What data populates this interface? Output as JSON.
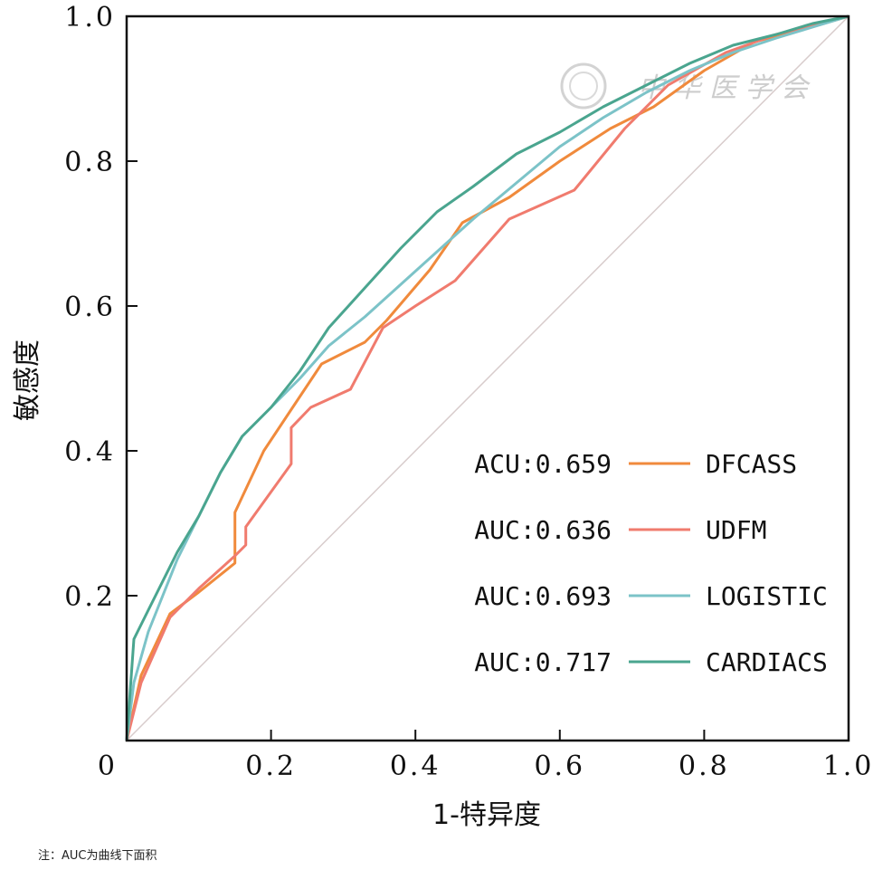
{
  "chart_data": {
    "type": "line",
    "title": "",
    "xlabel": "1-特异度",
    "ylabel": "敏感度",
    "xlim": [
      0,
      1
    ],
    "ylim": [
      0,
      1
    ],
    "x_ticks": [
      "0",
      "0.2",
      "0.4",
      "0.6",
      "0.8",
      "1.0"
    ],
    "y_ticks": [
      "0.2",
      "0.4",
      "0.6",
      "0.8",
      "1.0"
    ],
    "reference_line": {
      "x": [
        0,
        1
      ],
      "y": [
        0,
        1
      ],
      "color": "#d8cccc"
    },
    "legend_position": "center-right",
    "series": [
      {
        "name": "DFCASS",
        "auc_label": "ACU:0.659",
        "color": "#f08a3c",
        "x": [
          0,
          0.02,
          0.06,
          0.1,
          0.15,
          0.15,
          0.19,
          0.23,
          0.27,
          0.33,
          0.36,
          0.42,
          0.465,
          0.53,
          0.6,
          0.67,
          0.73,
          0.8,
          0.87,
          0.93,
          1.0
        ],
        "y": [
          0,
          0.09,
          0.175,
          0.205,
          0.245,
          0.315,
          0.4,
          0.46,
          0.52,
          0.55,
          0.58,
          0.65,
          0.715,
          0.75,
          0.8,
          0.845,
          0.875,
          0.925,
          0.965,
          0.98,
          1.0
        ]
      },
      {
        "name": "UDFM",
        "auc_label": "AUC:0.636",
        "color": "#f07b6e",
        "x": [
          0,
          0.02,
          0.06,
          0.1,
          0.15,
          0.165,
          0.165,
          0.228,
          0.228,
          0.255,
          0.31,
          0.355,
          0.4,
          0.455,
          0.53,
          0.62,
          0.69,
          0.75,
          0.83,
          0.9,
          1.0
        ],
        "y": [
          0,
          0.08,
          0.17,
          0.21,
          0.255,
          0.27,
          0.295,
          0.382,
          0.432,
          0.46,
          0.485,
          0.57,
          0.6,
          0.635,
          0.72,
          0.76,
          0.845,
          0.905,
          0.95,
          0.975,
          1.0
        ]
      },
      {
        "name": "LOGISTIC",
        "auc_label": "AUC:0.693",
        "color": "#7cc3c8",
        "x": [
          0,
          0.01,
          0.03,
          0.05,
          0.07,
          0.1,
          0.13,
          0.16,
          0.2,
          0.24,
          0.28,
          0.33,
          0.38,
          0.43,
          0.48,
          0.54,
          0.6,
          0.66,
          0.72,
          0.78,
          0.84,
          0.9,
          0.95,
          1.0
        ],
        "y": [
          0,
          0.08,
          0.15,
          0.2,
          0.25,
          0.31,
          0.37,
          0.42,
          0.46,
          0.5,
          0.545,
          0.585,
          0.63,
          0.675,
          0.72,
          0.77,
          0.82,
          0.86,
          0.895,
          0.925,
          0.95,
          0.97,
          0.985,
          1.0
        ]
      },
      {
        "name": "CARDIACS",
        "auc_label": "AUC:0.717",
        "color": "#4aa58f",
        "x": [
          0,
          0.01,
          0.03,
          0.05,
          0.07,
          0.1,
          0.13,
          0.16,
          0.2,
          0.24,
          0.28,
          0.33,
          0.38,
          0.43,
          0.48,
          0.54,
          0.6,
          0.66,
          0.72,
          0.78,
          0.84,
          0.9,
          0.95,
          1.0
        ],
        "y": [
          0,
          0.14,
          0.18,
          0.22,
          0.26,
          0.31,
          0.37,
          0.42,
          0.46,
          0.51,
          0.57,
          0.625,
          0.68,
          0.73,
          0.765,
          0.81,
          0.84,
          0.875,
          0.905,
          0.935,
          0.96,
          0.975,
          0.99,
          1.0
        ]
      }
    ]
  },
  "watermark": {
    "text": "中 华 医 学 会"
  },
  "note": "注：AUC为曲线下面积"
}
